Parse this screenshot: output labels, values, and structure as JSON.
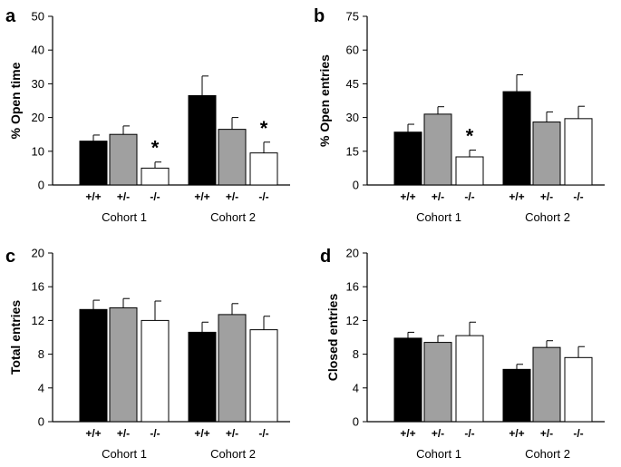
{
  "colors": {
    "wildtype": "#000000",
    "heterozygous": "#a0a0a0",
    "knockout": "#ffffff",
    "axis": "#000000"
  },
  "chart_data": [
    {
      "panel": "a",
      "type": "bar",
      "ylabel": "% Open time",
      "ylim": [
        0,
        50
      ],
      "yticks": [
        "0",
        "10",
        "20",
        "30",
        "40",
        "50"
      ],
      "cohorts": [
        {
          "name": "Cohort 1",
          "bars": [
            {
              "genotype": "+/+",
              "value": 13,
              "error": 1.8,
              "sig": ""
            },
            {
              "genotype": "+/-",
              "value": 15,
              "error": 2.5,
              "sig": ""
            },
            {
              "genotype": "-/-",
              "value": 5,
              "error": 1.8,
              "sig": "*"
            }
          ]
        },
        {
          "name": "Cohort 2",
          "bars": [
            {
              "genotype": "+/+",
              "value": 26.5,
              "error": 5.8,
              "sig": ""
            },
            {
              "genotype": "+/-",
              "value": 16.5,
              "error": 3.5,
              "sig": ""
            },
            {
              "genotype": "-/-",
              "value": 9.5,
              "error": 3.2,
              "sig": "*"
            }
          ]
        }
      ]
    },
    {
      "panel": "b",
      "type": "bar",
      "ylabel": "% Open entries",
      "ylim": [
        0,
        75
      ],
      "yticks": [
        "0",
        "15",
        "30",
        "45",
        "60",
        "75"
      ],
      "cohorts": [
        {
          "name": "Cohort 1",
          "bars": [
            {
              "genotype": "+/+",
              "value": 23.5,
              "error": 3.5,
              "sig": ""
            },
            {
              "genotype": "+/-",
              "value": 31.5,
              "error": 3.3,
              "sig": ""
            },
            {
              "genotype": "-/-",
              "value": 12.5,
              "error": 3,
              "sig": "*"
            }
          ]
        },
        {
          "name": "Cohort 2",
          "bars": [
            {
              "genotype": "+/+",
              "value": 41.5,
              "error": 7.5,
              "sig": ""
            },
            {
              "genotype": "+/-",
              "value": 28,
              "error": 4.5,
              "sig": ""
            },
            {
              "genotype": "-/-",
              "value": 29.5,
              "error": 5.5,
              "sig": ""
            }
          ]
        }
      ]
    },
    {
      "panel": "c",
      "type": "bar",
      "ylabel": "Total entries",
      "ylim": [
        0,
        20
      ],
      "yticks": [
        "0",
        "4",
        "8",
        "12",
        "16",
        "20"
      ],
      "cohorts": [
        {
          "name": "Cohort 1",
          "bars": [
            {
              "genotype": "+/+",
              "value": 13.3,
              "error": 1.1,
              "sig": ""
            },
            {
              "genotype": "+/-",
              "value": 13.5,
              "error": 1.1,
              "sig": ""
            },
            {
              "genotype": "-/-",
              "value": 12,
              "error": 2.3,
              "sig": ""
            }
          ]
        },
        {
          "name": "Cohort 2",
          "bars": [
            {
              "genotype": "+/+",
              "value": 10.6,
              "error": 1.2,
              "sig": ""
            },
            {
              "genotype": "+/-",
              "value": 12.7,
              "error": 1.3,
              "sig": ""
            },
            {
              "genotype": "-/-",
              "value": 10.9,
              "error": 1.6,
              "sig": ""
            }
          ]
        }
      ]
    },
    {
      "panel": "d",
      "type": "bar",
      "ylabel": "Closed entries",
      "ylim": [
        0,
        20
      ],
      "yticks": [
        "0",
        "4",
        "8",
        "12",
        "16",
        "20"
      ],
      "cohorts": [
        {
          "name": "Cohort 1",
          "bars": [
            {
              "genotype": "+/+",
              "value": 9.9,
              "error": 0.7,
              "sig": ""
            },
            {
              "genotype": "+/-",
              "value": 9.4,
              "error": 0.8,
              "sig": ""
            },
            {
              "genotype": "-/-",
              "value": 10.2,
              "error": 1.6,
              "sig": ""
            }
          ]
        },
        {
          "name": "Cohort 2",
          "bars": [
            {
              "genotype": "+/+",
              "value": 6.2,
              "error": 0.6,
              "sig": ""
            },
            {
              "genotype": "+/-",
              "value": 8.8,
              "error": 0.8,
              "sig": ""
            },
            {
              "genotype": "-/-",
              "value": 7.6,
              "error": 1.3,
              "sig": ""
            }
          ]
        }
      ]
    }
  ]
}
